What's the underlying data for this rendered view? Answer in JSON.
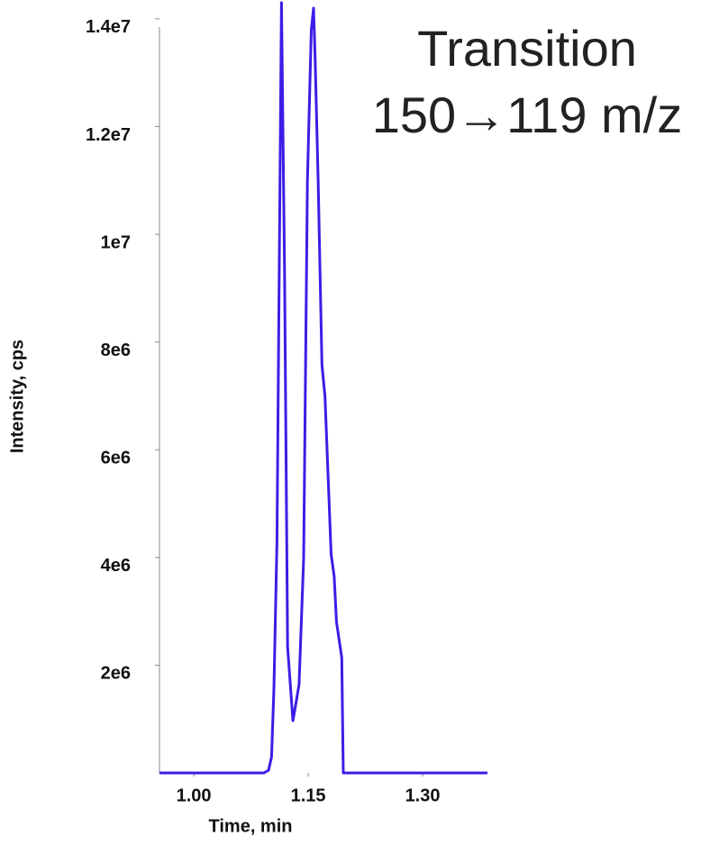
{
  "chart_data": {
    "type": "line",
    "title_lines": [
      "Transition",
      "150→119 m/z"
    ],
    "x_label": "Time, min",
    "y_label": "Intensity, cps",
    "xlim": [
      0.955,
      1.385
    ],
    "ylim": [
      0,
      14300000
    ],
    "xticks": [
      {
        "value": 1.0,
        "label": "1.00"
      },
      1.15,
      {
        "value": 1.3,
        "label": "1.30"
      }
    ],
    "yticks": [
      {
        "value": 2000000,
        "label": "2e6"
      },
      {
        "value": 4000000,
        "label": "4e6"
      },
      {
        "value": 6000000,
        "label": "6e6"
      },
      {
        "value": 8000000,
        "label": "8e6"
      },
      {
        "value": 10000000,
        "label": "1e7"
      },
      {
        "value": 12000000,
        "label": "1.2e7"
      },
      {
        "value": 14000000,
        "label": "1.4e7"
      }
    ],
    "grid": false,
    "series": [
      {
        "color": "#3a1ee6",
        "x": [
          0.955,
          1.092,
          1.098,
          1.102,
          1.105,
          1.109,
          1.115,
          1.119,
          1.123,
          1.13,
          1.133,
          1.138,
          1.144,
          1.149,
          1.154,
          1.157,
          1.159,
          1.163,
          1.168,
          1.172,
          1.18,
          1.184,
          1.187,
          1.194,
          1.196,
          1.385
        ],
        "values": [
          0,
          0,
          50000,
          300000,
          1560000,
          4310000,
          14300000,
          9330000,
          2340000,
          970000,
          1220000,
          1640000,
          3980000,
          11000000,
          13800000,
          14200000,
          13300000,
          11000000,
          7580000,
          6990000,
          4060000,
          3650000,
          2810000,
          2140000,
          0,
          0
        ]
      }
    ]
  }
}
